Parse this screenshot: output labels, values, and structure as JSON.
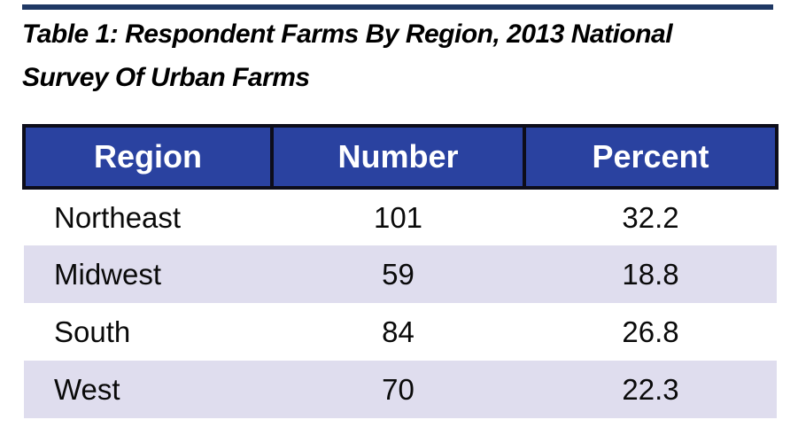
{
  "title": {
    "line1": "Table 1: Respondent Farms By Region, 2013 National",
    "line2": "Survey Of Urban Farms"
  },
  "colors": {
    "header_bg": "#2a42a0",
    "top_rule": "#1f3864",
    "row_alt_bg": "#dfddee",
    "header_text": "#ffffff",
    "body_text": "#0a0a0a",
    "table_border": "#0d0d1a"
  },
  "chart_data": {
    "type": "table",
    "title": "Table 1: Respondent Farms By Region, 2013 National Survey Of Urban Farms",
    "columns": [
      "Region",
      "Number",
      "Percent"
    ],
    "rows": [
      [
        "Northeast",
        "101",
        "32.2"
      ],
      [
        "Midwest",
        "59",
        "18.8"
      ],
      [
        "South",
        "84",
        "26.8"
      ],
      [
        "West",
        "70",
        "22.3"
      ]
    ]
  }
}
